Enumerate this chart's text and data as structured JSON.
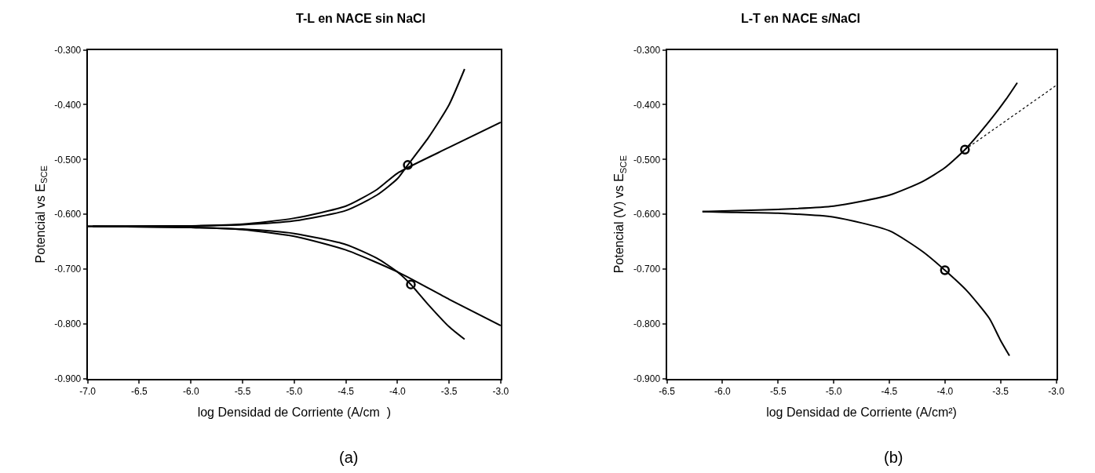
{
  "chart_data": [
    {
      "type": "line",
      "title": "T-L en NACE sin NaCl",
      "xlabel": "log Densidad de Corriente (A/cm  )",
      "ylabel": "Potencial vs E$_{SCE}$",
      "annotations": [
        "(a)"
      ],
      "xlim": [
        -7,
        -3
      ],
      "ylim": [
        -0.9,
        -0.3
      ],
      "xticks": [
        {
          "value": -7,
          "label": "-7.0"
        },
        {
          "value": -6.5,
          "label": "-6.5"
        },
        {
          "value": -6,
          "label": "-6.0"
        },
        {
          "value": -5.5,
          "label": "-5.5"
        },
        {
          "value": -5,
          "label": "-5.0"
        },
        {
          "value": -4.5,
          "label": "-4.5"
        },
        {
          "value": -4,
          "label": "-4.0"
        },
        {
          "value": -3.5,
          "label": "-3.5"
        },
        {
          "value": -3,
          "label": "-3.0"
        }
      ],
      "yticks": [
        {
          "value": -0.9,
          "label": "-0.900"
        },
        {
          "value": -0.8,
          "label": "-0.800"
        },
        {
          "value": -0.7,
          "label": "-0.700"
        },
        {
          "value": -0.6,
          "label": "-0.600"
        },
        {
          "value": -0.5,
          "label": "-0.500"
        },
        {
          "value": -0.4,
          "label": "-0.400"
        },
        {
          "value": -0.3,
          "label": "-0.300"
        }
      ],
      "series": [
        {
          "color": "#000000",
          "line_style": "solid",
          "x": [
            -6.95,
            -6,
            -5.5,
            -5,
            -4.5,
            -4.2,
            -4,
            -3.9,
            -3.7,
            -3.5,
            -3.35
          ],
          "values": [
            -0.622,
            -0.621,
            -0.619,
            -0.612,
            -0.593,
            -0.565,
            -0.535,
            -0.51,
            -0.46,
            -0.4,
            -0.335
          ]
        },
        {
          "color": "#000000",
          "line_style": "solid",
          "x": [
            -7,
            -6,
            -5.5,
            -5,
            -4.5,
            -4.2,
            -4,
            -3.5,
            -3
          ],
          "values": [
            -0.622,
            -0.621,
            -0.618,
            -0.607,
            -0.585,
            -0.555,
            -0.525,
            -0.478,
            -0.432
          ]
        },
        {
          "color": "#000000",
          "line_style": "solid",
          "x": [
            -6.95,
            -6,
            -5.5,
            -5,
            -4.5,
            -4.2,
            -4,
            -3.87,
            -3.7,
            -3.5,
            -3.35
          ],
          "values": [
            -0.622,
            -0.624,
            -0.627,
            -0.635,
            -0.655,
            -0.68,
            -0.705,
            -0.728,
            -0.765,
            -0.805,
            -0.828
          ]
        },
        {
          "color": "#000000",
          "line_style": "solid",
          "x": [
            -7,
            -6,
            -5.5,
            -5,
            -4.5,
            -4,
            -3.5,
            -3
          ],
          "values": [
            -0.622,
            -0.624,
            -0.628,
            -0.64,
            -0.665,
            -0.705,
            -0.755,
            -0.803
          ]
        },
        {
          "type": "scatter",
          "marker": "circle",
          "color": "#000000",
          "x": [
            -3.9,
            -3.87
          ],
          "values": [
            -0.51,
            -0.728
          ]
        }
      ]
    },
    {
      "type": "line",
      "title": "L-T en NACE s/NaCl",
      "xlabel": "log Densidad de Corriente (A/cm²)",
      "ylabel": "Potencial (V) vs E$_{SCE}$",
      "annotations": [
        "(b)"
      ],
      "xlim": [
        -6.5,
        -3
      ],
      "ylim": [
        -0.9,
        -0.3
      ],
      "xticks": [
        {
          "value": -6.5,
          "label": "-6.5"
        },
        {
          "value": -6,
          "label": "-6.0"
        },
        {
          "value": -5.5,
          "label": "-5.5"
        },
        {
          "value": -5,
          "label": "-5.0"
        },
        {
          "value": -4.5,
          "label": "-4.5"
        },
        {
          "value": -4,
          "label": "-4.0"
        },
        {
          "value": -3.5,
          "label": "-3.5"
        },
        {
          "value": -3,
          "label": "-3.0"
        }
      ],
      "yticks": [
        {
          "value": -0.9,
          "label": "-0.900"
        },
        {
          "value": -0.8,
          "label": "-0.800"
        },
        {
          "value": -0.7,
          "label": "-0.700"
        },
        {
          "value": -0.6,
          "label": "-0.600"
        },
        {
          "value": -0.5,
          "label": "-0.500"
        },
        {
          "value": -0.4,
          "label": "-0.400"
        },
        {
          "value": -0.3,
          "label": "-0.300"
        }
      ],
      "series": [
        {
          "color": "#000000",
          "line_style": "solid",
          "x": [
            -6.18,
            -6,
            -5.5,
            -5,
            -4.5,
            -4.2,
            -4,
            -3.82,
            -3.6,
            -3.45,
            -3.35
          ],
          "values": [
            -0.595,
            -0.594,
            -0.591,
            -0.585,
            -0.565,
            -0.54,
            -0.515,
            -0.482,
            -0.43,
            -0.39,
            -0.36
          ]
        },
        {
          "color": "#000000",
          "line_style": "dotted",
          "x": [
            -3.82,
            -3
          ],
          "values": [
            -0.482,
            -0.365
          ]
        },
        {
          "color": "#000000",
          "line_style": "solid",
          "x": [
            -6.18,
            -6,
            -5.5,
            -5,
            -4.5,
            -4.2,
            -4,
            -3.8,
            -3.6,
            -3.5,
            -3.42
          ],
          "values": [
            -0.595,
            -0.596,
            -0.598,
            -0.605,
            -0.63,
            -0.668,
            -0.702,
            -0.74,
            -0.79,
            -0.83,
            -0.858
          ]
        },
        {
          "type": "scatter",
          "marker": "circle",
          "color": "#000000",
          "x": [
            -3.82,
            -4
          ],
          "values": [
            -0.482,
            -0.702
          ]
        }
      ]
    }
  ]
}
